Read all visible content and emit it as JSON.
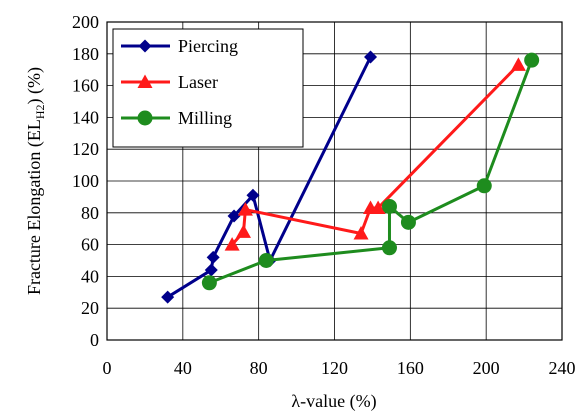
{
  "chart_data": {
    "type": "line",
    "xlabel": "λ-value  (%)",
    "ylabel_parts": {
      "main": "Fracture Elongation (EL",
      "sub": "H2",
      "tail": ") (%)"
    },
    "xlim": [
      0,
      240
    ],
    "ylim": [
      0,
      200
    ],
    "x_ticks": [
      "0",
      "40",
      "80",
      "120",
      "160",
      "200",
      "240"
    ],
    "y_ticks": [
      "0",
      "20",
      "40",
      "60",
      "80",
      "100",
      "120",
      "140",
      "160",
      "180",
      "200"
    ],
    "grid": true,
    "legend_position": "top-left",
    "series": [
      {
        "name": "Piercing",
        "color": "#00008b",
        "marker": "diamond",
        "points": [
          [
            32,
            27
          ],
          [
            55,
            44
          ],
          [
            56,
            52
          ],
          [
            67,
            78
          ],
          [
            77,
            91
          ],
          [
            86,
            50
          ],
          [
            139,
            178
          ]
        ]
      },
      {
        "name": "Laser",
        "color": "#ff1a1a",
        "marker": "triangle",
        "points": [
          [
            66,
            60
          ],
          [
            72,
            68
          ],
          [
            73,
            82
          ],
          [
            134,
            67
          ],
          [
            139,
            83
          ],
          [
            143,
            83
          ],
          [
            217,
            173
          ]
        ]
      },
      {
        "name": "Milling",
        "color": "#1e8c1e",
        "marker": "circle",
        "points": [
          [
            54,
            36
          ],
          [
            84,
            50
          ],
          [
            149,
            58
          ],
          [
            149,
            84
          ],
          [
            159,
            74
          ],
          [
            199,
            97
          ],
          [
            224,
            176
          ]
        ]
      }
    ]
  }
}
